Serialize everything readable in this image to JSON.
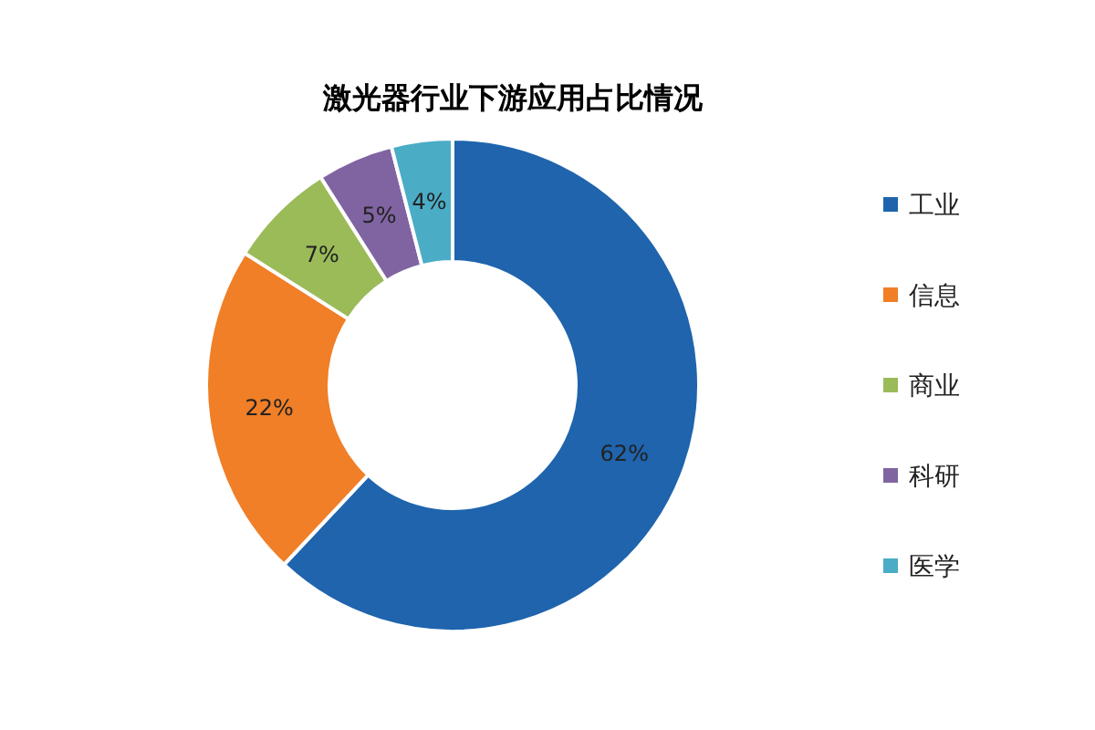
{
  "chart_data": {
    "type": "donut",
    "title": "激光器行业下游应用占比情况",
    "categories": [
      "工业",
      "信息",
      "商业",
      "科研",
      "医学"
    ],
    "values": [
      62,
      22,
      7,
      5,
      4
    ],
    "colors": [
      "#1f64ad",
      "#f07f27",
      "#9bbb59",
      "#8064a2",
      "#4bacc6"
    ],
    "value_labels": [
      "62%",
      "22%",
      "7%",
      "5%",
      "4%"
    ],
    "legend": "right"
  }
}
